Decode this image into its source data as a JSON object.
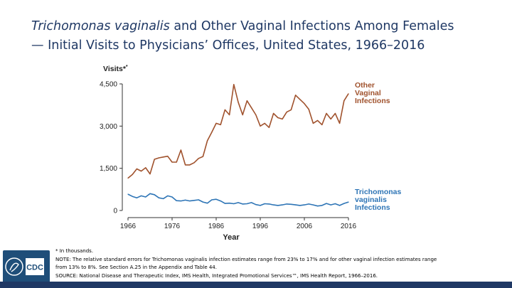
{
  "title": {
    "species": "Trichomonas vaginalis",
    "rest_line1": " and Other Vaginal Infections Among Females",
    "line2": "— Initial Visits to Physicians’ Offices, United States, 1966–2016"
  },
  "chart_data": {
    "type": "line",
    "title": "",
    "xlabel": "Year",
    "ylabel": "Visits*",
    "xlim": [
      1966,
      2016
    ],
    "ylim": [
      0,
      4500
    ],
    "x_ticks": [
      1966,
      1976,
      1986,
      1996,
      2006,
      2016
    ],
    "y_ticks": [
      0,
      1500,
      3000,
      4500
    ],
    "y_tick_labels": [
      "0",
      "1,500",
      "3,000",
      "4,500"
    ],
    "series": [
      {
        "name": "Other Vaginal Infections",
        "label_lines": [
          "Other",
          "Vaginal",
          "Infections"
        ],
        "color": "#a0522d",
        "x": [
          1966,
          1967,
          1968,
          1969,
          1970,
          1971,
          1972,
          1973,
          1974,
          1975,
          1976,
          1977,
          1978,
          1979,
          1980,
          1981,
          1982,
          1983,
          1984,
          1985,
          1986,
          1987,
          1988,
          1989,
          1990,
          1991,
          1992,
          1993,
          1994,
          1995,
          1996,
          1997,
          1998,
          1999,
          2000,
          2001,
          2002,
          2003,
          2004,
          2005,
          2006,
          2007,
          2008,
          2009,
          2010,
          2011,
          2012,
          2013,
          2014,
          2015,
          2016
        ],
        "values": [
          1150,
          1280,
          1480,
          1400,
          1520,
          1300,
          1820,
          1870,
          1900,
          1930,
          1720,
          1720,
          2150,
          1620,
          1620,
          1700,
          1850,
          1920,
          2480,
          2780,
          3100,
          3050,
          3580,
          3400,
          4480,
          3850,
          3400,
          3900,
          3650,
          3400,
          3000,
          3100,
          2950,
          3450,
          3300,
          3250,
          3500,
          3580,
          4100,
          3950,
          3800,
          3600,
          3100,
          3200,
          3050,
          3450,
          3250,
          3450,
          3100,
          3900,
          4150
        ]
      },
      {
        "name": "Trichomonas vaginalis Infections",
        "label_lines": [
          "Trichomonas",
          "vaginalis",
          "Infections"
        ],
        "color": "#2e75b6",
        "x": [
          1966,
          1967,
          1968,
          1969,
          1970,
          1971,
          1972,
          1973,
          1974,
          1975,
          1976,
          1977,
          1978,
          1979,
          1980,
          1981,
          1982,
          1983,
          1984,
          1985,
          1986,
          1987,
          1988,
          1989,
          1990,
          1991,
          1992,
          1993,
          1994,
          1995,
          1996,
          1997,
          1998,
          1999,
          2000,
          2001,
          2002,
          2003,
          2004,
          2005,
          2006,
          2007,
          2008,
          2009,
          2010,
          2011,
          2012,
          2013,
          2014,
          2015,
          2016
        ],
        "values": [
          580,
          500,
          450,
          520,
          480,
          600,
          560,
          450,
          420,
          520,
          480,
          350,
          340,
          370,
          340,
          360,
          380,
          300,
          260,
          380,
          400,
          340,
          250,
          260,
          240,
          280,
          230,
          240,
          280,
          210,
          180,
          240,
          230,
          200,
          180,
          200,
          230,
          220,
          200,
          180,
          200,
          230,
          200,
          160,
          180,
          250,
          200,
          240,
          180,
          250,
          300
        ]
      }
    ],
    "footnote_marker": "*",
    "footnote_units": "In thousands."
  },
  "notes": {
    "units": "* In thousands.",
    "note_line1": "NOTE: The relative standard errors for Trichomonas vaginalis infection estimates range from 23% to 17% and for other vaginal infection estimates range",
    "note_line2": "from 13% to 8%. See Section A.25 in the Appendix and Table 44.",
    "source": "SOURCE: National Disease and Therapeutic Index, IMS Health, Integrated Promotional Services™, IMS Health Report, 1966–2016."
  },
  "logo": {
    "text": "CDC"
  }
}
